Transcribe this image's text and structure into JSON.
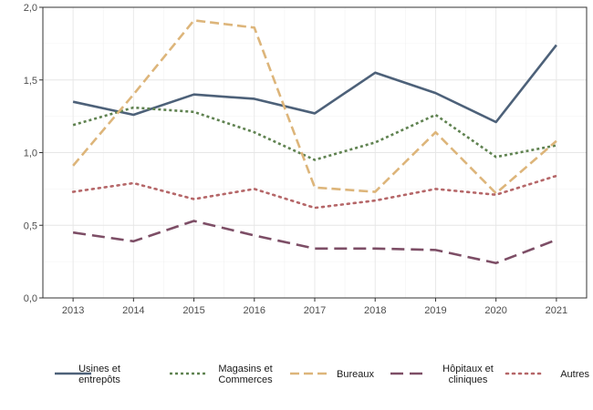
{
  "chart_data": {
    "type": "line",
    "title": "",
    "xlabel": "",
    "ylabel": "",
    "ylim": [
      0,
      2
    ],
    "yticks": [
      "0,0",
      "0,5",
      "1,0",
      "1,5",
      "2,0"
    ],
    "x": [
      "2013",
      "2014",
      "2015",
      "2016",
      "2017",
      "2018",
      "2019",
      "2020",
      "2021"
    ],
    "grid": true,
    "legend_position": "bottom",
    "series": [
      {
        "name": "Usines et entrepôts",
        "legend_lines": [
          "Usines et",
          "entrepôts"
        ],
        "values": [
          1.35,
          1.26,
          1.4,
          1.37,
          1.27,
          1.55,
          1.41,
          1.21,
          1.74
        ],
        "color": "#4d6179",
        "style": "solid"
      },
      {
        "name": "Magasins et Commerces",
        "legend_lines": [
          "Magasins et",
          "Commerces"
        ],
        "values": [
          1.19,
          1.31,
          1.28,
          1.14,
          0.95,
          1.07,
          1.26,
          0.97,
          1.05
        ],
        "color": "#5f8250",
        "style": "dotted"
      },
      {
        "name": "Bureaux",
        "legend_lines": [
          "Bureaux"
        ],
        "values": [
          0.91,
          1.4,
          1.91,
          1.86,
          0.76,
          0.73,
          1.14,
          0.72,
          1.08
        ],
        "color": "#ddb57a",
        "style": "dashed"
      },
      {
        "name": "Hôpitaux et cliniques",
        "legend_lines": [
          "Hôpitaux et",
          "cliniques"
        ],
        "values": [
          0.45,
          0.39,
          0.53,
          0.43,
          0.34,
          0.34,
          0.33,
          0.24,
          0.4
        ],
        "color": "#7d4e66",
        "style": "longdash"
      },
      {
        "name": "Autres",
        "legend_lines": [
          "Autres"
        ],
        "values": [
          0.73,
          0.79,
          0.68,
          0.75,
          0.62,
          0.67,
          0.75,
          0.71,
          0.84
        ],
        "color": "#b56668",
        "style": "fine-dotted"
      }
    ]
  }
}
